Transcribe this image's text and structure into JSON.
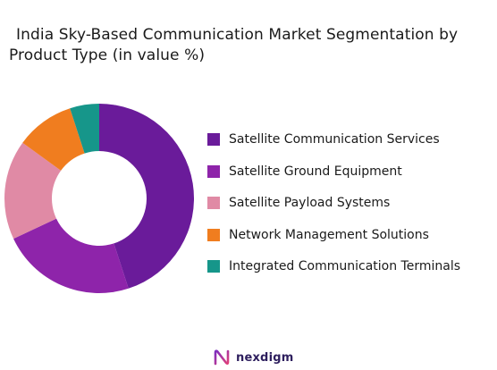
{
  "chart_data": {
    "type": "pie",
    "variant": "donut",
    "title": "India Sky-Based Communication Market Segmentation by Product Type (in value %)",
    "title_lines": [
      "India Sky-Based Communication Market Segmentation by",
      "Product Type (in value %)"
    ],
    "categories": [
      "Satellite Communication Services",
      "Satellite Ground Equipment",
      "Satellite Payload Systems",
      "Network Management Solutions",
      "Integrated Communication Terminals"
    ],
    "values": [
      45,
      23,
      17,
      10,
      5
    ],
    "colors": [
      "#6a1b9a",
      "#8e24aa",
      "#e08aa5",
      "#f07d1f",
      "#16968a"
    ],
    "legend_position": "right"
  },
  "brand": {
    "name": "nexdigm"
  }
}
